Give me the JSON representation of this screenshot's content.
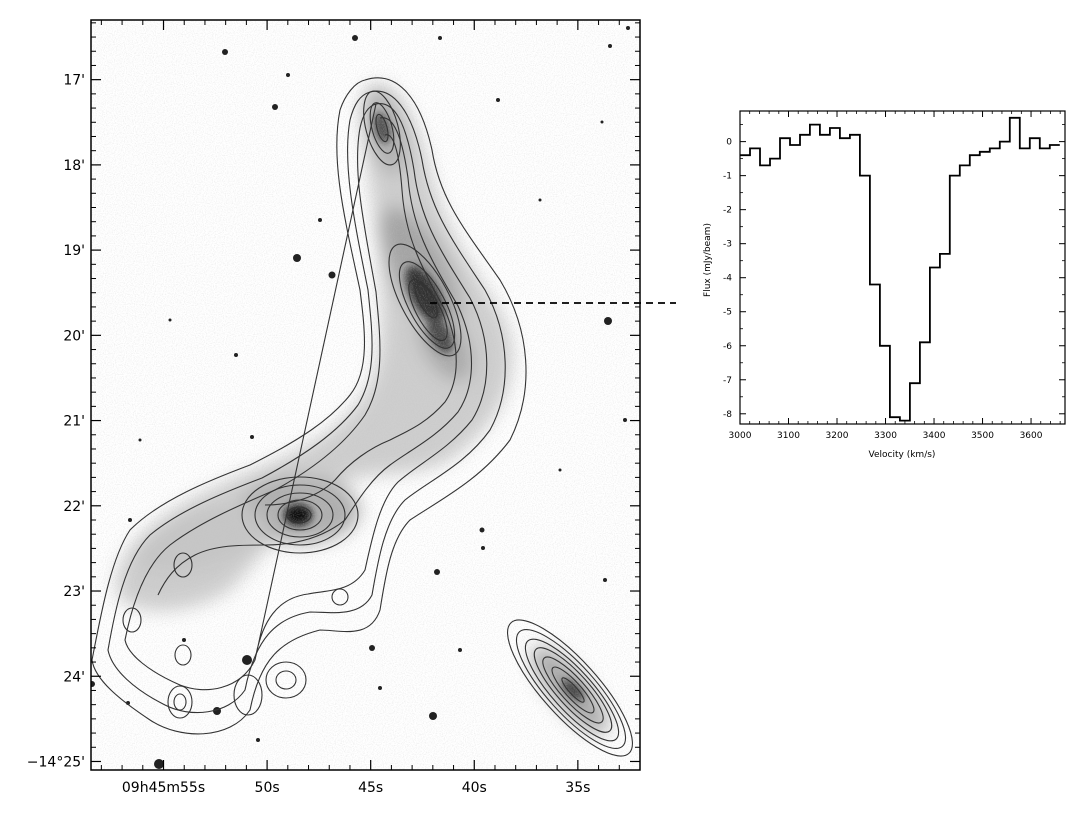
{
  "chart_data": [
    {
      "type": "image",
      "dec_ticks": [
        {
          "label": "17'",
          "value": 17.0
        },
        {
          "label": "18'",
          "value": 18.0
        },
        {
          "label": "19'",
          "value": 19.0
        },
        {
          "label": "20'",
          "value": 20.0
        },
        {
          "label": "21'",
          "value": 21.0
        },
        {
          "label": "22'",
          "value": 22.0
        },
        {
          "label": "23'",
          "value": 23.0
        },
        {
          "label": "24'",
          "value": 24.0
        },
        {
          "label": "−14°25'",
          "value": 25.0
        }
      ],
      "ra_ticks": [
        {
          "label": "09h45m55s",
          "value": 55
        },
        {
          "label": "50s",
          "value": 50
        },
        {
          "label": "45s",
          "value": 45
        },
        {
          "label": "40s",
          "value": 40
        },
        {
          "label": "35s",
          "value": 35
        }
      ],
      "ra_range": [
        58.5,
        32
      ],
      "dec_range": [
        16.3,
        25.1
      ]
    },
    {
      "type": "line",
      "xlabel": "Velocity (km/s)",
      "ylabel": "Flux (mJy/beam)",
      "xlim": [
        3000,
        3670
      ],
      "ylim": [
        -8.3,
        0.9
      ],
      "x_ticks": [
        3000,
        3100,
        3200,
        3300,
        3400,
        3500,
        3600
      ],
      "x_tick_labels": [
        "3000",
        "3100",
        "3200",
        "3300",
        "3400",
        "3500",
        "3600"
      ],
      "y_ticks": [
        0,
        -1,
        -2,
        -3,
        -4,
        -5,
        -6,
        -7,
        -8
      ],
      "y_tick_labels": [
        "0",
        "-1",
        "-2",
        "-3",
        "-4",
        "-5",
        "-6",
        "-7",
        "-8"
      ],
      "bin_width": 20.6,
      "series": [
        {
          "values": [
            -0.4,
            -0.2,
            -0.7,
            -0.5,
            0.1,
            -0.1,
            0.2,
            0.5,
            0.2,
            0.4,
            0.1,
            0.2,
            -1.0,
            -4.2,
            -6.0,
            -8.1,
            -8.2,
            -7.1,
            -5.9,
            -3.7,
            -3.3,
            -1.0,
            -0.7,
            -0.4,
            -0.3,
            -0.2,
            0.0,
            0.7,
            -0.2,
            0.1,
            -0.2,
            -0.1
          ]
        }
      ]
    }
  ]
}
